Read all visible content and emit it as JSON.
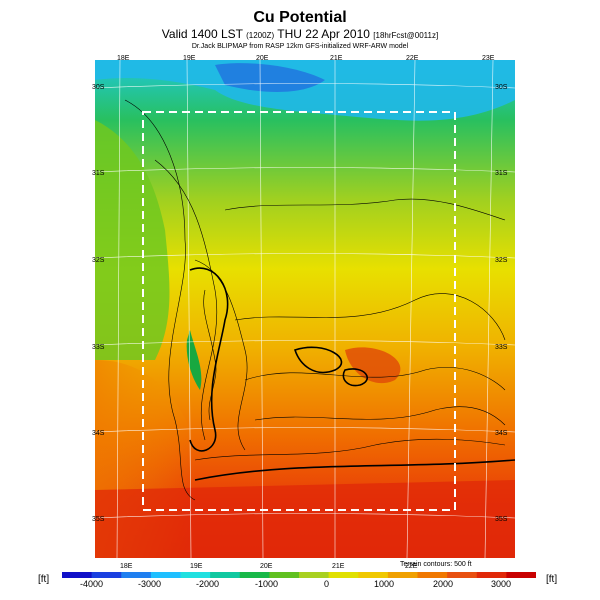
{
  "title": "Cu Potential",
  "subtitle": "Valid 1400 LST",
  "subtitle_small": "(1200Z)",
  "subtitle_date": "THU 22 Apr 2010",
  "subtitle_tag": "[18hrFcst@0011z]",
  "credit": "Dr.Jack BLIPMAP from RASP 12km GFS-initialized WRF-ARW model",
  "terrain_note": "Terrain contours: 500 ft",
  "colorbar": {
    "unit_left": "[ft]",
    "unit_right": "[ft]",
    "labels": [
      "-4000",
      "-3000",
      "-2000",
      "-1000",
      "0",
      "1000",
      "2000",
      "3000"
    ],
    "colors": [
      "#1010c8",
      "#1a40e0",
      "#1f7ff0",
      "#1fbfff",
      "#20e0e0",
      "#10c8a0",
      "#18b848",
      "#60c020",
      "#a8d020",
      "#e0e000",
      "#f0c800",
      "#f0a000",
      "#f07800",
      "#e85010",
      "#e02808",
      "#c80000"
    ]
  },
  "lon_labels_top": [
    "18E",
    "19E",
    "20E",
    "21E",
    "22E",
    "23E"
  ],
  "lon_labels_bottom": [
    "18E",
    "19E",
    "20E",
    "21E",
    "22E"
  ],
  "lat_labels_left": [
    "30S",
    "31S",
    "32S",
    "33S",
    "34S",
    "35S"
  ],
  "lat_labels_right": [
    "30S",
    "31S",
    "32S",
    "33S",
    "34S",
    "35S"
  ]
}
